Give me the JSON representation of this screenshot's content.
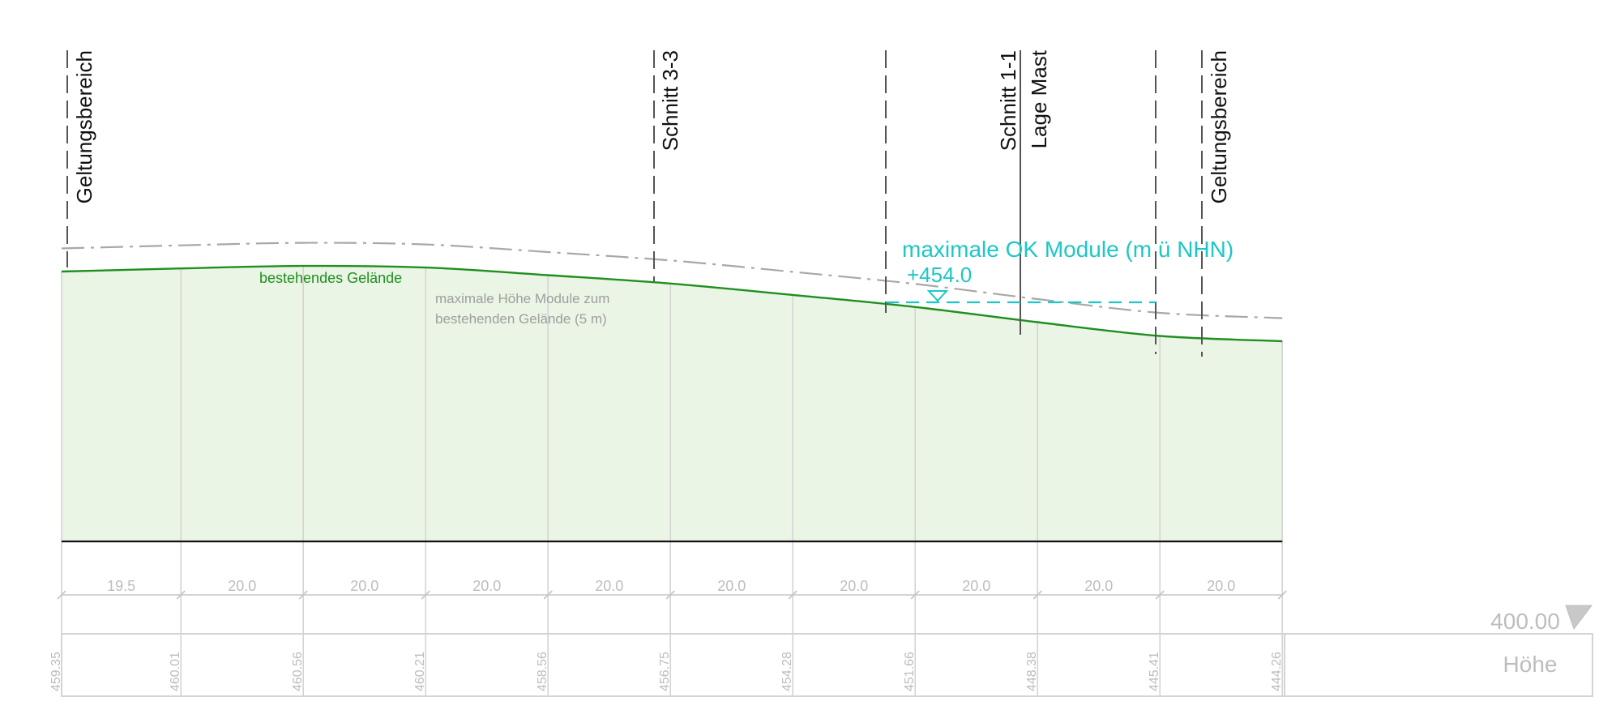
{
  "colors": {
    "terrain_line": "#1f8f1f",
    "terrain_fill": "#eaf5e5",
    "max_height_line": "#a8a8a8",
    "max_ok_line": "#1ec6c6",
    "grid": "#d4d4d4",
    "marker_line": "#555555",
    "baseline": "#111111"
  },
  "vertical_markers": [
    {
      "label": "Geltungsbereich",
      "style": "dashed"
    },
    {
      "label": "Schnitt 3-3",
      "style": "dashed"
    },
    {
      "label": "",
      "style": "dashed"
    },
    {
      "label": "Schnitt 1-1",
      "style": "solid"
    },
    {
      "label": "Lage Mast",
      "style": "solid"
    },
    {
      "label": "",
      "style": "dashed"
    },
    {
      "label": "Geltungsbereich",
      "style": "dashed"
    }
  ],
  "annotations": {
    "terrain": "bestehendes Gelände",
    "max_height_line1": "maximale Höhe Module zum",
    "max_height_line2": "bestehenden Gelände (5 m)",
    "max_ok_title": "maximale OK Module (m ü NHN)",
    "max_ok_value": "+454.0"
  },
  "reference_level": "400.00",
  "height_row_label": "Höhe",
  "chart_data": {
    "type": "area",
    "series": [
      {
        "name": "bestehendes Gelände",
        "values": [
          459.35,
          460.01,
          460.56,
          460.21,
          458.56,
          456.75,
          454.28,
          451.66,
          448.38,
          445.41,
          444.26
        ]
      }
    ],
    "distances": [
      "19.5",
      "20.0",
      "20.0",
      "20.0",
      "20.0",
      "20.0",
      "20.0",
      "20.0",
      "20.0",
      "20.0"
    ],
    "elevations": [
      "459.35",
      "460.01",
      "460.56",
      "460.21",
      "458.56",
      "456.75",
      "454.28",
      "451.66",
      "448.38",
      "445.41",
      "444.26"
    ],
    "max_ok": 454.0,
    "max_height_offset": 5
  }
}
